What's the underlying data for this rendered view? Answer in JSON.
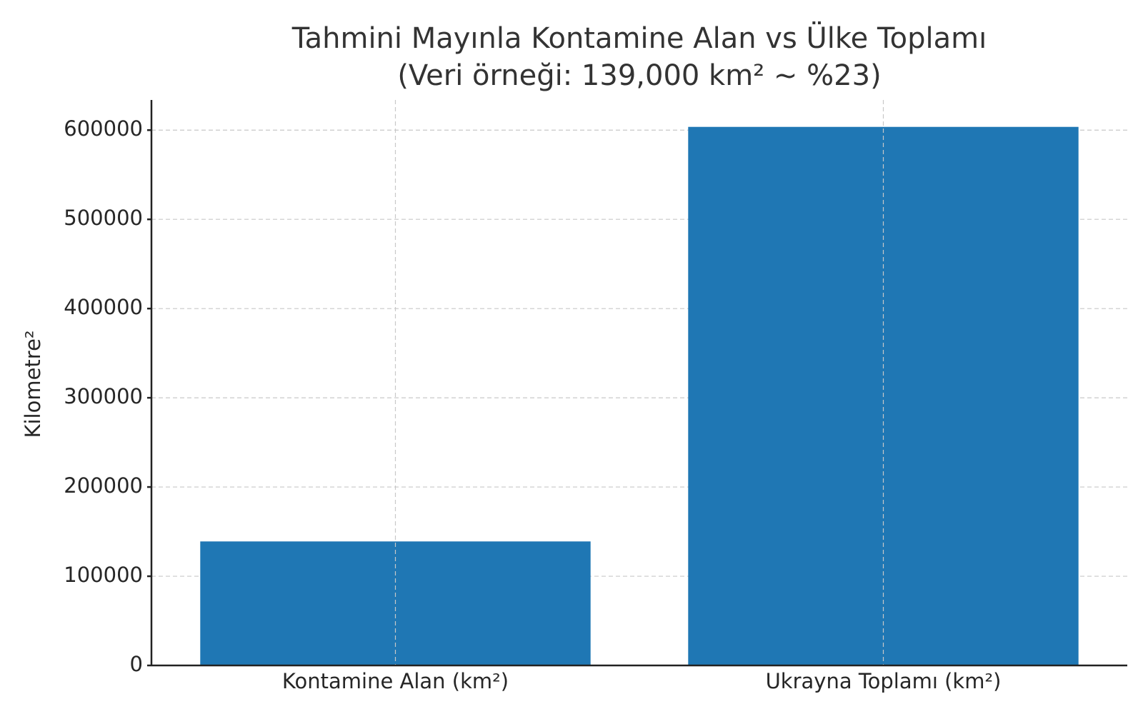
{
  "chart_data": {
    "type": "bar",
    "title": "Tahmini Mayınla Kontamine Alan vs Ülke Toplamı",
    "subtitle": "(Veri örneği: 139,000 km² ~ %23)",
    "ylabel": "Kilometre²",
    "categories": [
      "Kontamine Alan (km²)",
      "Ukrayna Toplamı (km²)"
    ],
    "values": [
      139000,
      603628
    ],
    "color": "#1f77b4",
    "ylim": [
      0,
      633809
    ],
    "yticks": [
      0,
      100000,
      200000,
      300000,
      400000,
      500000,
      600000
    ],
    "grid": true
  }
}
